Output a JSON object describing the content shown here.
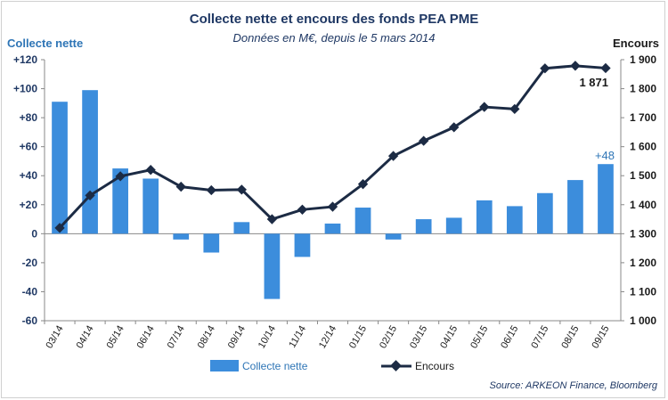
{
  "chart_data": {
    "type": "bar+line",
    "title": "Collecte nette et encours des fonds PEA PME",
    "subtitle": "Données en M€, depuis le 5 mars 2014",
    "categories": [
      "03/14",
      "04/14",
      "05/14",
      "06/14",
      "07/14",
      "08/14",
      "09/14",
      "10/14",
      "11/14",
      "12/14",
      "01/15",
      "02/15",
      "03/15",
      "04/15",
      "05/15",
      "06/15",
      "07/15",
      "08/15",
      "09/15"
    ],
    "y_left": {
      "label": "Collecte nette",
      "lim": [
        -60,
        120
      ],
      "ticks": [
        120,
        100,
        80,
        60,
        40,
        20,
        0,
        -20,
        -40,
        -60
      ],
      "tick_labels": [
        "+120",
        "+100",
        "+80",
        "+60",
        "+40",
        "+20",
        "0",
        "-20",
        "-40",
        "-60"
      ]
    },
    "y_right": {
      "label": "Encours",
      "lim": [
        1000,
        1900
      ],
      "ticks": [
        1900,
        1800,
        1700,
        1600,
        1500,
        1400,
        1300,
        1200,
        1100,
        1000
      ],
      "tick_labels": [
        "1 900",
        "1 800",
        "1 700",
        "1 600",
        "1 500",
        "1 400",
        "1 300",
        "1 200",
        "1 100",
        "1 000"
      ]
    },
    "series": [
      {
        "name": "Collecte nette",
        "type": "bar",
        "axis": "left",
        "color": "#3c8ddc",
        "values": [
          91,
          99,
          45,
          38,
          -4,
          -13,
          8,
          -45,
          -16,
          7,
          18,
          -4,
          10,
          11,
          23,
          19,
          28,
          37,
          48
        ]
      },
      {
        "name": "Encours",
        "type": "line",
        "axis": "right",
        "color": "#1c2b44",
        "values": [
          1320,
          1432,
          1498,
          1520,
          1462,
          1450,
          1452,
          1350,
          1383,
          1393,
          1471,
          1568,
          1620,
          1667,
          1737,
          1730,
          1870,
          1879,
          1871
        ]
      }
    ],
    "annotations": {
      "bar_last": "+48",
      "line_last": "1 871"
    },
    "grid": false,
    "legend_position": "bottom",
    "source": "Source: ARKEON Finance, Bloomberg"
  }
}
